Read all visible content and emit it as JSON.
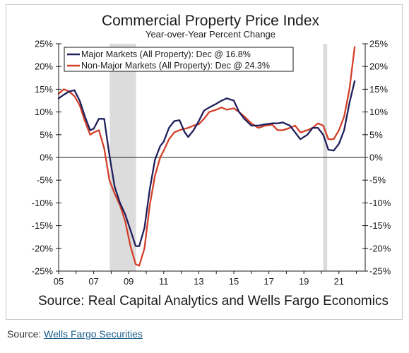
{
  "caption": {
    "prefix": "Source: ",
    "link_text": "Wells Fargo Securities"
  },
  "chart_data": {
    "type": "line",
    "title": "Commercial Property Price Index",
    "subtitle": "Year-over-Year Percent Change",
    "source_note": "Source: Real Capital Analytics and Wells Fargo Economics",
    "x_range": [
      2005,
      2022.5
    ],
    "ylim": [
      -25,
      25
    ],
    "y_ticks": [
      25,
      20,
      15,
      10,
      5,
      0,
      -5,
      -10,
      -15,
      -20,
      -25
    ],
    "y_tick_labels": [
      "25%",
      "20%",
      "15%",
      "10%",
      "5%",
      "0%",
      "-5%",
      "-10%",
      "-15%",
      "-20%",
      "-25%"
    ],
    "x_ticks": [
      2005,
      2007,
      2009,
      2011,
      2013,
      2015,
      2017,
      2019,
      2021
    ],
    "x_tick_labels": [
      "05",
      "07",
      "09",
      "11",
      "13",
      "15",
      "17",
      "19",
      "21"
    ],
    "legend_position": "top-left",
    "shaded_periods": [
      {
        "start": 2007.92,
        "end": 2009.42
      },
      {
        "start": 2020.1,
        "end": 2020.33
      }
    ],
    "series": [
      {
        "name": "Major Markets (All Property): Dec @ 16.8%",
        "color": "#1f1f5c",
        "x": [
          2005.0,
          2005.3,
          2005.6,
          2005.9,
          2006.2,
          2006.5,
          2006.8,
          2007.0,
          2007.3,
          2007.6,
          2007.9,
          2008.2,
          2008.5,
          2008.8,
          2009.1,
          2009.4,
          2009.6,
          2009.9,
          2010.2,
          2010.5,
          2010.8,
          2011.0,
          2011.3,
          2011.6,
          2011.9,
          2012.2,
          2012.4,
          2012.7,
          2013.0,
          2013.3,
          2013.6,
          2014.0,
          2014.3,
          2014.6,
          2015.0,
          2015.3,
          2015.6,
          2016.0,
          2016.4,
          2016.8,
          2017.2,
          2017.5,
          2017.8,
          2018.2,
          2018.5,
          2018.8,
          2019.2,
          2019.5,
          2019.8,
          2020.1,
          2020.4,
          2020.7,
          2021.0,
          2021.3,
          2021.6,
          2021.9
        ],
        "y": [
          13,
          13.8,
          14.5,
          14.8,
          12.5,
          9,
          6,
          6.3,
          8.5,
          8.5,
          0.5,
          -6.5,
          -10,
          -12.5,
          -16,
          -19.5,
          -19.5,
          -15.5,
          -7,
          -0.5,
          2.5,
          3.5,
          6.5,
          8,
          8.2,
          5.5,
          4.5,
          6,
          8,
          10.3,
          11,
          11.8,
          12.5,
          13,
          12.5,
          10,
          8.5,
          7,
          7,
          7.3,
          7.5,
          7.5,
          7.7,
          7,
          5.5,
          4,
          5,
          6.5,
          6.5,
          5,
          1.7,
          1.5,
          3,
          6,
          12,
          16.8
        ]
      },
      {
        "name": "Non-Major Markets (All Property): Dec @ 24.3%",
        "color": "#d2402a",
        "x": [
          2005.0,
          2005.3,
          2005.6,
          2005.9,
          2006.2,
          2006.5,
          2006.8,
          2007.0,
          2007.3,
          2007.6,
          2007.9,
          2008.2,
          2008.5,
          2008.8,
          2009.1,
          2009.4,
          2009.6,
          2009.9,
          2010.2,
          2010.5,
          2010.8,
          2011.0,
          2011.3,
          2011.6,
          2011.9,
          2012.2,
          2012.4,
          2012.7,
          2013.0,
          2013.3,
          2013.6,
          2014.0,
          2014.3,
          2014.6,
          2015.0,
          2015.3,
          2015.6,
          2016.0,
          2016.4,
          2016.8,
          2017.2,
          2017.5,
          2017.8,
          2018.2,
          2018.5,
          2018.8,
          2019.2,
          2019.5,
          2019.8,
          2020.1,
          2020.4,
          2020.7,
          2021.0,
          2021.3,
          2021.6,
          2021.9
        ],
        "y": [
          14,
          15,
          14.5,
          13.5,
          11.5,
          8,
          5,
          5.5,
          6,
          2,
          -5,
          -8,
          -10.5,
          -14,
          -19.5,
          -23.5,
          -23.8,
          -20,
          -10.5,
          -4,
          0,
          1.5,
          4,
          5.5,
          6,
          6.3,
          6.5,
          7,
          7.3,
          8.5,
          10,
          10.5,
          11,
          10.5,
          10.8,
          10,
          9,
          7.5,
          6.5,
          7,
          7.2,
          6,
          6,
          6.5,
          7,
          5.5,
          6,
          6.5,
          7.5,
          7,
          4,
          4,
          6,
          9,
          15,
          24.3
        ]
      }
    ]
  }
}
